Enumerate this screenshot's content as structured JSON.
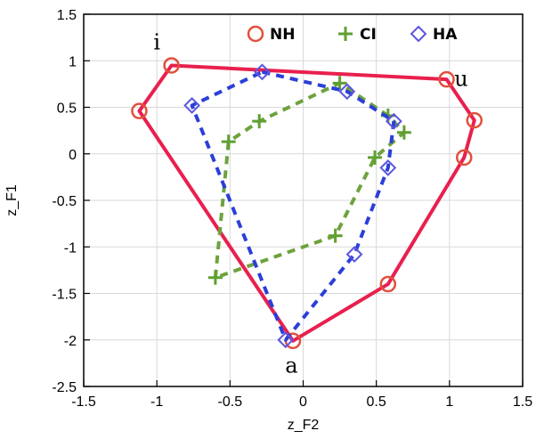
{
  "chart_data": {
    "type": "line",
    "xlabel": "z_F2",
    "ylabel": "z_F1",
    "xlim": [
      -1.5,
      1.5
    ],
    "ylim": [
      -2.5,
      1.5
    ],
    "x_ticks": [
      "-1.5",
      "-1",
      "-0.5",
      "0",
      "0.5",
      "1",
      "1.5"
    ],
    "y_ticks": [
      "1.5",
      "1",
      "0.5",
      "0",
      "-0.5",
      "-1",
      "-1.5",
      "-2",
      "-2.5"
    ],
    "grid": true,
    "legend_position": "top-right",
    "series": [
      {
        "name": "NH",
        "color": "#e8204e",
        "marker_color": "#e1503c",
        "marker": "circle",
        "line_style": "solid",
        "points": [
          {
            "x": -0.9,
            "y": 0.95
          },
          {
            "x": 0.98,
            "y": 0.8
          },
          {
            "x": 1.17,
            "y": 0.36
          },
          {
            "x": 1.1,
            "y": -0.04
          },
          {
            "x": 0.58,
            "y": -1.4
          },
          {
            "x": -0.07,
            "y": -2.01
          },
          {
            "x": -1.12,
            "y": 0.46
          }
        ]
      },
      {
        "name": "CI",
        "color": "#6ea23e",
        "marker_color": "#5fa030",
        "marker": "plus",
        "line_style": "dashed",
        "points": [
          {
            "x": -0.6,
            "y": -1.33
          },
          {
            "x": -0.51,
            "y": 0.13
          },
          {
            "x": -0.3,
            "y": 0.35
          },
          {
            "x": 0.25,
            "y": 0.76
          },
          {
            "x": 0.58,
            "y": 0.41
          },
          {
            "x": 0.69,
            "y": 0.23
          },
          {
            "x": 0.49,
            "y": -0.04
          },
          {
            "x": 0.22,
            "y": -0.88
          }
        ]
      },
      {
        "name": "HA",
        "color": "#2b3fd8",
        "marker_color": "#5b55e0",
        "marker": "diamond",
        "line_style": "dashed",
        "points": [
          {
            "x": -0.28,
            "y": 0.88
          },
          {
            "x": 0.3,
            "y": 0.67
          },
          {
            "x": 0.62,
            "y": 0.35
          },
          {
            "x": 0.58,
            "y": -0.15
          },
          {
            "x": 0.35,
            "y": -1.08
          },
          {
            "x": -0.12,
            "y": -2.0
          },
          {
            "x": -0.76,
            "y": 0.52
          }
        ]
      }
    ],
    "annotations": [
      {
        "text": "i",
        "x": -1.0,
        "y": 1.12
      },
      {
        "text": "u",
        "x": 1.08,
        "y": 0.73
      },
      {
        "text": "a",
        "x": -0.08,
        "y": -2.35
      }
    ]
  }
}
